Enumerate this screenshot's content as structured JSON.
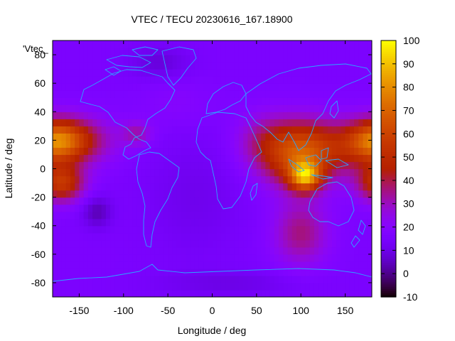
{
  "chart_data": {
    "type": "heatmap",
    "title": "VTEC / TECU 20230616_167.18900",
    "xlabel": "Longitude / deg",
    "ylabel": "Latitude / deg",
    "key_label": "'Vtec_",
    "xlim": [
      -180,
      180
    ],
    "ylim": [
      -90,
      90
    ],
    "x_ticks": [
      -150,
      -100,
      -50,
      0,
      50,
      100,
      150
    ],
    "y_ticks": [
      -80,
      -60,
      -40,
      -20,
      0,
      20,
      40,
      60,
      80
    ],
    "colorbar": {
      "range": [
        -10,
        100
      ],
      "ticks": [
        100,
        90,
        80,
        70,
        60,
        50,
        40,
        30,
        20,
        10,
        0,
        -10
      ],
      "palette": "gnuplot-pm3d"
    },
    "grid": false,
    "resolution_deg": 5,
    "background_level": 16,
    "components": [
      {
        "lon": 105,
        "lat": -5,
        "slon": 12,
        "slat": 7,
        "amp": 52
      },
      {
        "lon": 95,
        "lat": 10,
        "slon": 28,
        "slat": 16,
        "amp": 38
      },
      {
        "lon": 135,
        "lat": 15,
        "slon": 40,
        "slat": 14,
        "amp": 22
      },
      {
        "lon": 100,
        "lat": -45,
        "slon": 22,
        "slat": 16,
        "amp": 20
      },
      {
        "lon": 55,
        "lat": 20,
        "slon": 22,
        "slat": 14,
        "amp": 12
      },
      {
        "lon": -175,
        "lat": 20,
        "slon": 22,
        "slat": 10,
        "amp": 42
      },
      {
        "lon": -170,
        "lat": -10,
        "slon": 18,
        "slat": 9,
        "amp": 38
      },
      {
        "lon": -150,
        "lat": 20,
        "slon": 30,
        "slat": 12,
        "amp": 20
      },
      {
        "lon": -85,
        "lat": 25,
        "slon": 12,
        "slat": 6,
        "amp": 15
      },
      {
        "lon": -40,
        "lat": 45,
        "slon": 30,
        "slat": 12,
        "amp": 4
      },
      {
        "lon": -130,
        "lat": -30,
        "slon": 12,
        "slat": 8,
        "amp": -12
      },
      {
        "lon": -20,
        "lat": -20,
        "slon": 40,
        "slat": 30,
        "amp": -5
      },
      {
        "lon": -60,
        "lat": 75,
        "slon": 25,
        "slat": 8,
        "amp": -8
      },
      {
        "lon": 20,
        "lat": -80,
        "slon": 60,
        "slat": 6,
        "amp": -6
      }
    ]
  }
}
